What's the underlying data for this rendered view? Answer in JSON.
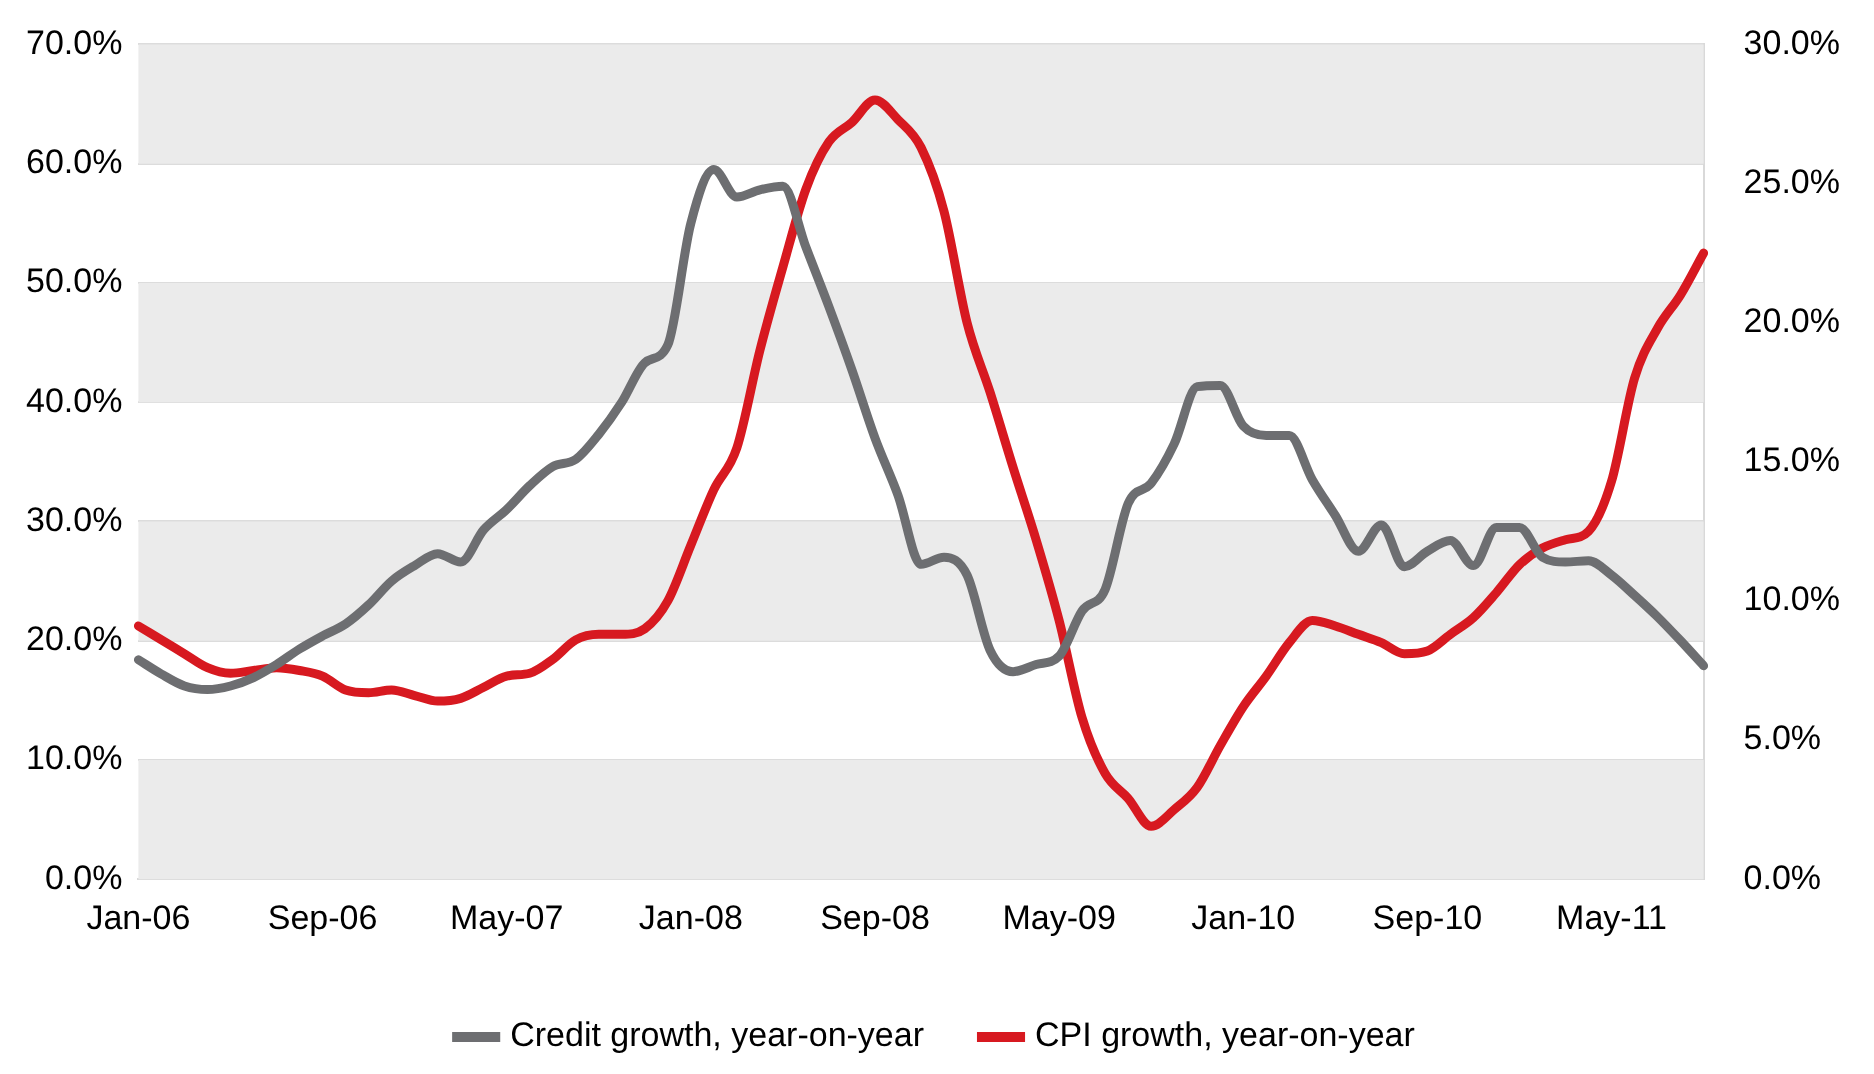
{
  "chart_data": {
    "type": "line",
    "categories": [
      "Jan-06",
      null,
      null,
      null,
      null,
      null,
      null,
      null,
      "Sep-06",
      null,
      null,
      null,
      null,
      null,
      null,
      null,
      "May-07",
      null,
      null,
      null,
      null,
      null,
      null,
      null,
      "Jan-08",
      null,
      null,
      null,
      null,
      null,
      null,
      null,
      "Sep-08",
      null,
      null,
      null,
      null,
      null,
      null,
      null,
      "May-09",
      null,
      null,
      null,
      null,
      null,
      null,
      null,
      "Jan-10",
      null,
      null,
      null,
      null,
      null,
      null,
      null,
      "Sep-10",
      null,
      null,
      null,
      null,
      null,
      null,
      null,
      "May-11",
      null,
      null,
      null,
      null
    ],
    "series": [
      {
        "name": "Credit growth, year-on-year",
        "color": "#6d6e71",
        "values": [
          18.4,
          17.2,
          16.2,
          15.9,
          16.2,
          16.9,
          18.0,
          19.3,
          20.4,
          21.4,
          23.0,
          25.0,
          26.3,
          27.3,
          26.6,
          29.3,
          31.0,
          33.0,
          34.6,
          35.2,
          37.3,
          40.0,
          43.3,
          44.8,
          55.0,
          59.5,
          57.2,
          57.8,
          58.1,
          53.0,
          48.0,
          42.7,
          37.0,
          32.2,
          26.4,
          27.0,
          25.5,
          19.2,
          17.4,
          18.0,
          18.7,
          22.5,
          24.3,
          31.5,
          33.2,
          36.5,
          41.3,
          41.4,
          38.0,
          37.2,
          37.2,
          33.5,
          30.5,
          27.5,
          29.7,
          26.2,
          27.5,
          28.4,
          26.3,
          29.5,
          29.5,
          27.0,
          26.6,
          26.7,
          25.5,
          23.8,
          22.0,
          20.0,
          17.9
        ]
      },
      {
        "name": "CPI growth, year-on-year",
        "color": "#d71920",
        "axis": "y2",
        "values": [
          9.1,
          8.6,
          8.1,
          7.6,
          7.4,
          7.5,
          7.6,
          7.5,
          7.3,
          6.8,
          6.7,
          6.8,
          6.6,
          6.4,
          6.5,
          6.9,
          7.3,
          7.4,
          7.9,
          8.6,
          8.8,
          8.8,
          9.0,
          10.0,
          12.0,
          14.0,
          15.5,
          19.0,
          22.0,
          24.8,
          26.5,
          27.2,
          28.0,
          27.3,
          26.3,
          24.0,
          20.0,
          17.5,
          14.8,
          12.2,
          9.3,
          5.8,
          3.8,
          2.9,
          1.9,
          2.5,
          3.3,
          4.8,
          6.2,
          7.3,
          8.5,
          9.3,
          9.1,
          8.8,
          8.5,
          8.1,
          8.2,
          8.8,
          9.4,
          10.3,
          11.3,
          11.9,
          12.2,
          12.5,
          14.3,
          18.0,
          19.8,
          21.0,
          22.5
        ]
      }
    ],
    "ylim": [
      0,
      70
    ],
    "yticks": [
      {
        "value": 0,
        "label": "0.0%"
      },
      {
        "value": 10,
        "label": "10.0%"
      },
      {
        "value": 20,
        "label": "20.0%"
      },
      {
        "value": 30,
        "label": "30.0%"
      },
      {
        "value": 40,
        "label": "40.0%"
      },
      {
        "value": 50,
        "label": "50.0%"
      },
      {
        "value": 60,
        "label": "60.0%"
      },
      {
        "value": 70,
        "label": "70.0%"
      }
    ],
    "y2lim": [
      0,
      30
    ],
    "y2ticks": [
      {
        "value": 0,
        "label": "0.0%"
      },
      {
        "value": 5,
        "label": "5.0%"
      },
      {
        "value": 10,
        "label": "10.0%"
      },
      {
        "value": 15,
        "label": "15.0%"
      },
      {
        "value": 20,
        "label": "20.0%"
      },
      {
        "value": 25,
        "label": "25.0%"
      },
      {
        "value": 30,
        "label": "30.0%"
      }
    ],
    "grid": "y",
    "legend": "bottom",
    "marker": "none",
    "line_style": "solid"
  }
}
